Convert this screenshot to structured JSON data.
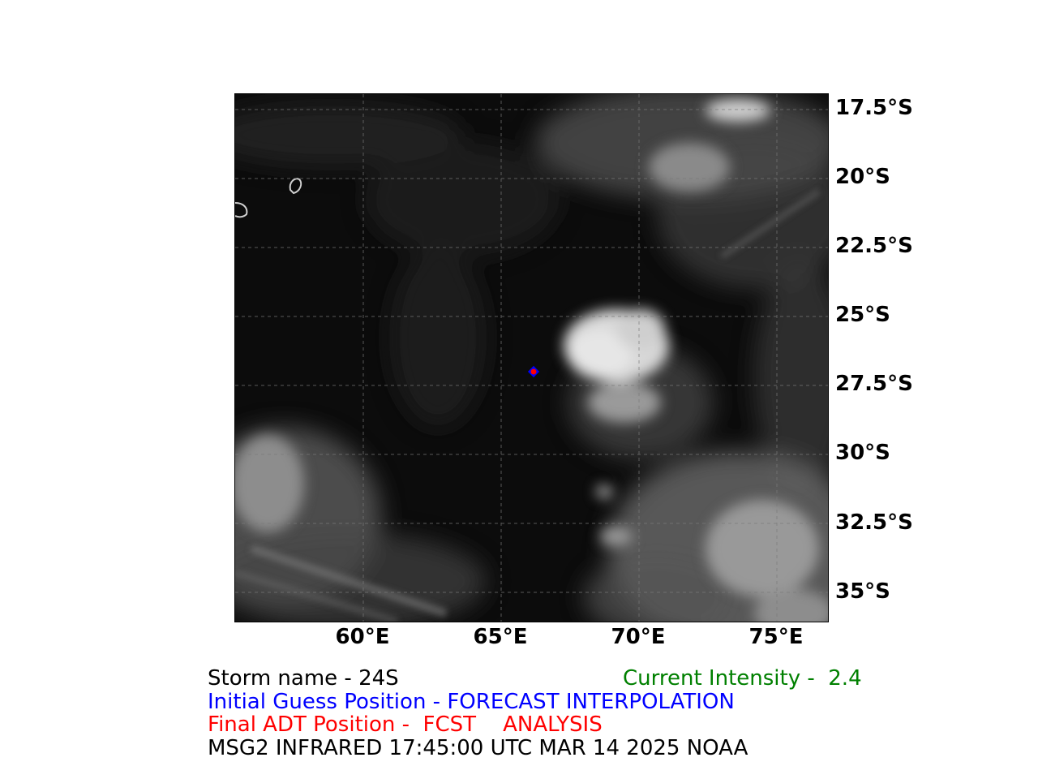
{
  "axes": {
    "latitude_labels": [
      "17.5°S",
      "20°S",
      "22.5°S",
      "25°S",
      "27.5°S",
      "30°S",
      "32.5°S",
      "35°S"
    ],
    "longitude_labels": [
      "60°E",
      "65°E",
      "70°E",
      "75°E"
    ]
  },
  "markers": {
    "initial_guess": {
      "lon": 66.2,
      "lat": -27.0,
      "color": "#0000ff"
    },
    "final_adt": {
      "lon": 66.2,
      "lat": -27.0,
      "color": "#ff0000"
    }
  },
  "captions": {
    "storm_name": "Storm name - 24S",
    "current_intensity": "Current Intensity -  2.4",
    "initial_guess": "Initial Guess Position - FORECAST INTERPOLATION",
    "final_adt": "Final ADT Position -  FCST    ANALYSIS",
    "satellite_info": "MSG2 INFRARED 17:45:00 UTC MAR 14 2025 NOAA"
  },
  "colors": {
    "storm_name": "#000000",
    "current_intensity": "#008000",
    "initial_guess": "#0000ff",
    "final_adt": "#ff0000",
    "satellite_info": "#000000"
  }
}
